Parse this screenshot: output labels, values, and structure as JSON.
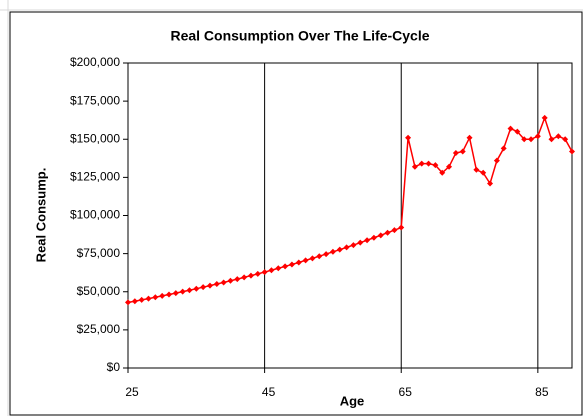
{
  "chart_data": {
    "type": "line",
    "title": "Real Consumption Over The Life-Cycle",
    "x_label": "Age",
    "y_label": "Real Consump.",
    "x": [
      25,
      26,
      27,
      28,
      29,
      30,
      31,
      32,
      33,
      34,
      35,
      36,
      37,
      38,
      39,
      40,
      41,
      42,
      43,
      44,
      45,
      46,
      47,
      48,
      49,
      50,
      51,
      52,
      53,
      54,
      55,
      56,
      57,
      58,
      59,
      60,
      61,
      62,
      63,
      64,
      65,
      66,
      67,
      68,
      69,
      70,
      71,
      72,
      73,
      74,
      75,
      76,
      77,
      78,
      79,
      80,
      81,
      82,
      83,
      84,
      85,
      86,
      87,
      88,
      89,
      90
    ],
    "series": [
      {
        "name": "Real Consump.",
        "color": "#ff0000",
        "values": [
          43000,
          43800,
          44700,
          45500,
          46400,
          47300,
          48200,
          49100,
          50100,
          51000,
          52000,
          53000,
          54000,
          55100,
          56100,
          57200,
          58300,
          59400,
          60600,
          61700,
          62900,
          64100,
          65400,
          66600,
          67900,
          69200,
          70600,
          71900,
          73300,
          74700,
          76200,
          77600,
          79100,
          80600,
          82200,
          83800,
          85400,
          87000,
          88700,
          90400,
          92100,
          151000,
          132000,
          134000,
          134000,
          133000,
          128000,
          132000,
          141000,
          142000,
          151000,
          130000,
          128000,
          121000,
          136000,
          144000,
          157000,
          155000,
          150000,
          150000,
          152000,
          164000,
          150000,
          152000,
          150000,
          142000
        ]
      }
    ],
    "xlim": [
      25,
      90
    ],
    "xticks": [
      25,
      45,
      65,
      85
    ],
    "ylim": [
      0,
      200000
    ],
    "yticks": [
      {
        "value": 0,
        "label": "$0"
      },
      {
        "value": 25000,
        "label": "$25,000"
      },
      {
        "value": 50000,
        "label": "$50,000"
      },
      {
        "value": 75000,
        "label": "$75,000"
      },
      {
        "value": 100000,
        "label": "$100,000"
      },
      {
        "value": 125000,
        "label": "$125,000"
      },
      {
        "value": 150000,
        "label": "$150,000"
      },
      {
        "value": 175000,
        "label": "$175,000"
      },
      {
        "value": 200000,
        "label": "$200,000"
      }
    ],
    "x_grid": true
  }
}
